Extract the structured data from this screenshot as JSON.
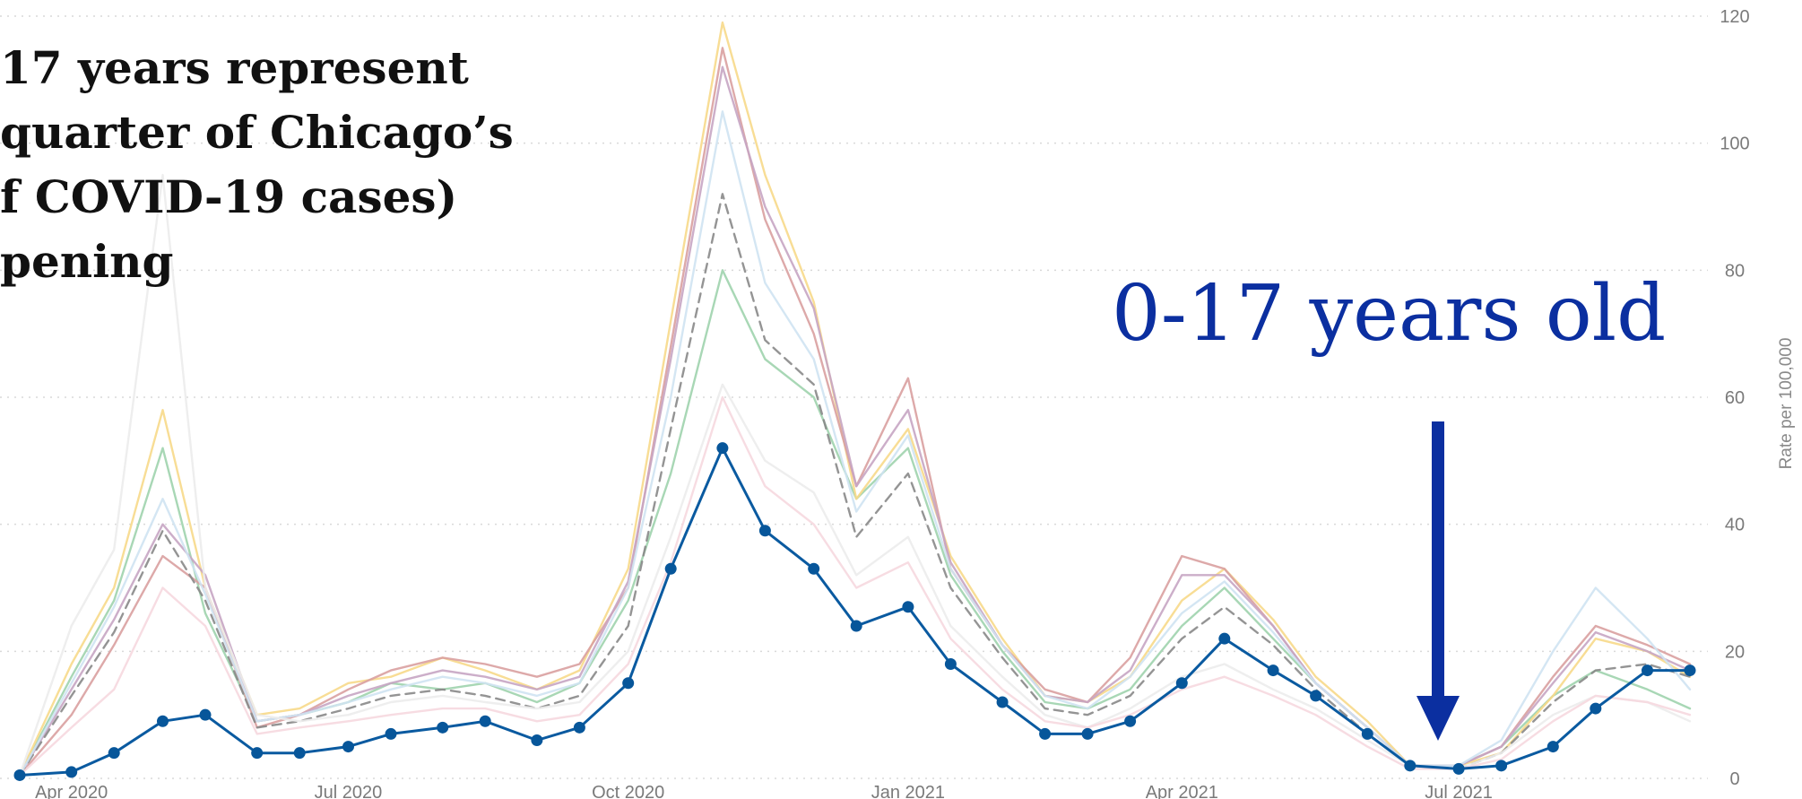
{
  "chart_data": {
    "type": "line",
    "title": "",
    "xlabel": "",
    "ylabel": "Rate per 100,000",
    "ylim": [
      0,
      120
    ],
    "yticks": [
      0,
      20,
      40,
      60,
      80,
      100,
      120
    ],
    "xticks": [
      "Apr 2020",
      "Jul 2020",
      "Oct 2020",
      "Jan 2021",
      "Apr 2021",
      "Jul 2021"
    ],
    "grid": true,
    "highlight_series": "0-17 years old",
    "x": [
      "2020-03-15",
      "2020-04-01",
      "2020-04-15",
      "2020-05-01",
      "2020-05-15",
      "2020-06-01",
      "2020-06-15",
      "2020-07-01",
      "2020-07-15",
      "2020-08-01",
      "2020-08-15",
      "2020-09-01",
      "2020-09-15",
      "2020-10-01",
      "2020-10-15",
      "2020-11-01",
      "2020-11-15",
      "2020-12-01",
      "2020-12-15",
      "2021-01-01",
      "2021-01-15",
      "2021-02-01",
      "2021-02-15",
      "2021-03-01",
      "2021-03-15",
      "2021-04-01",
      "2021-04-15",
      "2021-05-01",
      "2021-05-15",
      "2021-06-01",
      "2021-06-15",
      "2021-07-01",
      "2021-07-15",
      "2021-08-01",
      "2021-08-15",
      "2021-09-01",
      "2021-09-15"
    ],
    "series": [
      {
        "name": "0-17 years old",
        "color": "#0a5aa0",
        "values": [
          0.5,
          1,
          4,
          9,
          10,
          4,
          4,
          5,
          7,
          8,
          9,
          6,
          8,
          15,
          33,
          52,
          39,
          33,
          24,
          27,
          18,
          12,
          7,
          7,
          9,
          15,
          22,
          17,
          13,
          7,
          2,
          1.5,
          2,
          5,
          11,
          17,
          17
        ]
      },
      {
        "values": [
          0.5,
          16,
          28,
          52,
          26,
          9,
          10,
          12,
          15,
          14,
          15,
          12,
          15,
          28,
          48,
          80,
          66,
          60,
          44,
          52,
          32,
          20,
          12,
          11,
          14,
          24,
          30,
          22,
          15,
          8,
          2,
          2,
          5,
          13,
          17,
          14,
          11
        ],
        "color": "#9fd3ad"
      },
      {
        "values": [
          0.5,
          18,
          30,
          58,
          30,
          10,
          11,
          15,
          16,
          19,
          17,
          14,
          17,
          33,
          72,
          119,
          95,
          75,
          44,
          55,
          35,
          22,
          13,
          12,
          16,
          28,
          33,
          25,
          16,
          9,
          2,
          2,
          4,
          13,
          22,
          20,
          16
        ],
        "color": "#f7d98a"
      },
      {
        "values": [
          0.5,
          10,
          21,
          35,
          30,
          8,
          10,
          14,
          17,
          19,
          18,
          16,
          18,
          30,
          68,
          115,
          88,
          70,
          46,
          63,
          33,
          21,
          14,
          12,
          19,
          35,
          33,
          24,
          15,
          8,
          2,
          2,
          5,
          16,
          24,
          21,
          18
        ],
        "color": "#d9a0a0"
      },
      {
        "values": [
          0.5,
          14,
          25,
          40,
          32,
          9,
          10,
          13,
          15,
          17,
          16,
          14,
          16,
          31,
          66,
          112,
          90,
          74,
          46,
          58,
          34,
          21,
          13,
          12,
          17,
          32,
          32,
          24,
          15,
          8,
          2,
          2,
          5,
          15,
          23,
          20,
          17
        ],
        "color": "#c7a5c3"
      },
      {
        "values": [
          0.5,
          13,
          23,
          39,
          28,
          8,
          9,
          11,
          13,
          14,
          13,
          11,
          13,
          24,
          55,
          92,
          69,
          62,
          38,
          48,
          30,
          19,
          11,
          10,
          13,
          22,
          27,
          21,
          14,
          7,
          2,
          1.5,
          4,
          12,
          17,
          18,
          16
        ],
        "color": "#888888"
      },
      {
        "values": [
          0.5,
          15,
          27,
          44,
          29,
          9,
          10,
          12,
          14,
          16,
          15,
          13,
          15,
          30,
          60,
          105,
          78,
          66,
          42,
          54,
          33,
          21,
          13,
          11,
          16,
          26,
          31,
          23,
          15,
          8,
          2,
          2,
          6,
          20,
          30,
          22,
          14
        ],
        "color": "#cfe3f2"
      },
      {
        "values": [
          0.5,
          24,
          36,
          95,
          30,
          10,
          9,
          10,
          12,
          13,
          12,
          11,
          12,
          20,
          38,
          62,
          50,
          45,
          32,
          38,
          24,
          16,
          10,
          8,
          11,
          16,
          18,
          14,
          11,
          6,
          2,
          1.5,
          4,
          10,
          13,
          12,
          9
        ],
        "color": "#ececec"
      },
      {
        "values": [
          0.5,
          8,
          14,
          30,
          24,
          7,
          8,
          9,
          10,
          11,
          11,
          9,
          10,
          18,
          34,
          60,
          46,
          40,
          30,
          34,
          22,
          14,
          9,
          8,
          10,
          14,
          16,
          13,
          10,
          5,
          1.5,
          1.5,
          3,
          9,
          13,
          12,
          10
        ],
        "color": "#f6d8df"
      }
    ]
  },
  "headline": [
    "17 years represent",
    "quarter of Chicago’s",
    "f COVID-19 cases)",
    "pening"
  ],
  "annotation": "0-17 years old"
}
